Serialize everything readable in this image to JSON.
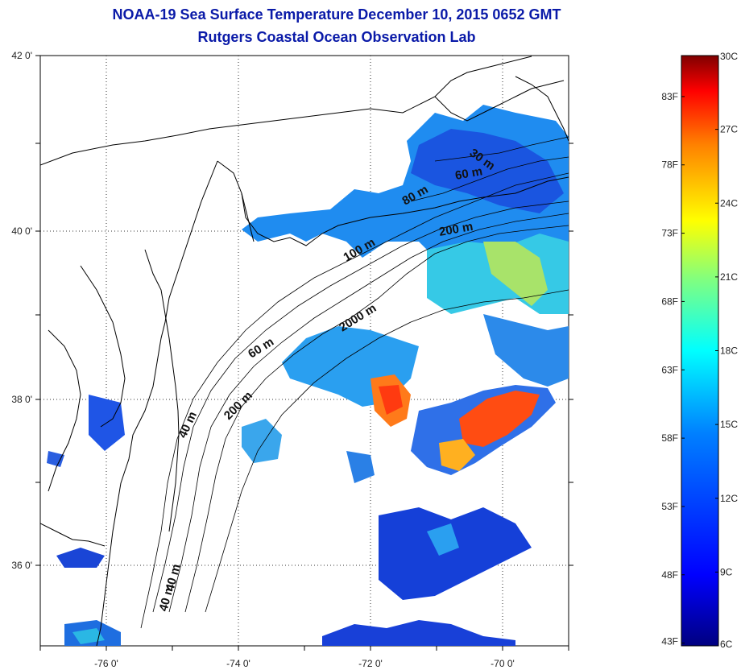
{
  "header": {
    "title_line1": "NOAA-19 Sea Surface Temperature December 10, 2015 0652 GMT",
    "title_line2": "Rutgers Coastal Ocean Observation Lab"
  },
  "map": {
    "lon_labels": [
      "-76 0'",
      "-74 0'",
      "-72 0'",
      "-70 0'"
    ],
    "lat_labels": [
      "42 0'",
      "40 0'",
      "38 0'",
      "36 0'"
    ],
    "contour_labels": [
      "30 m",
      "60 m",
      "80 m",
      "200 m",
      "100 m",
      "2000 m",
      "60 m",
      "200 m",
      "40 m",
      "40 m",
      "40 m"
    ]
  },
  "colorbar": {
    "celsius_labels": [
      "30C",
      "27C",
      "24C",
      "21C",
      "18C",
      "15C",
      "12C",
      "9C",
      "6C"
    ],
    "fahrenheit_labels": [
      "83F",
      "78F",
      "73F",
      "68F",
      "63F",
      "58F",
      "53F",
      "48F",
      "43F"
    ],
    "colors": [
      "#800000",
      "#ff0000",
      "#ff8000",
      "#ffff00",
      "#80ff80",
      "#00ffff",
      "#0080ff",
      "#0000ff",
      "#000080"
    ]
  }
}
